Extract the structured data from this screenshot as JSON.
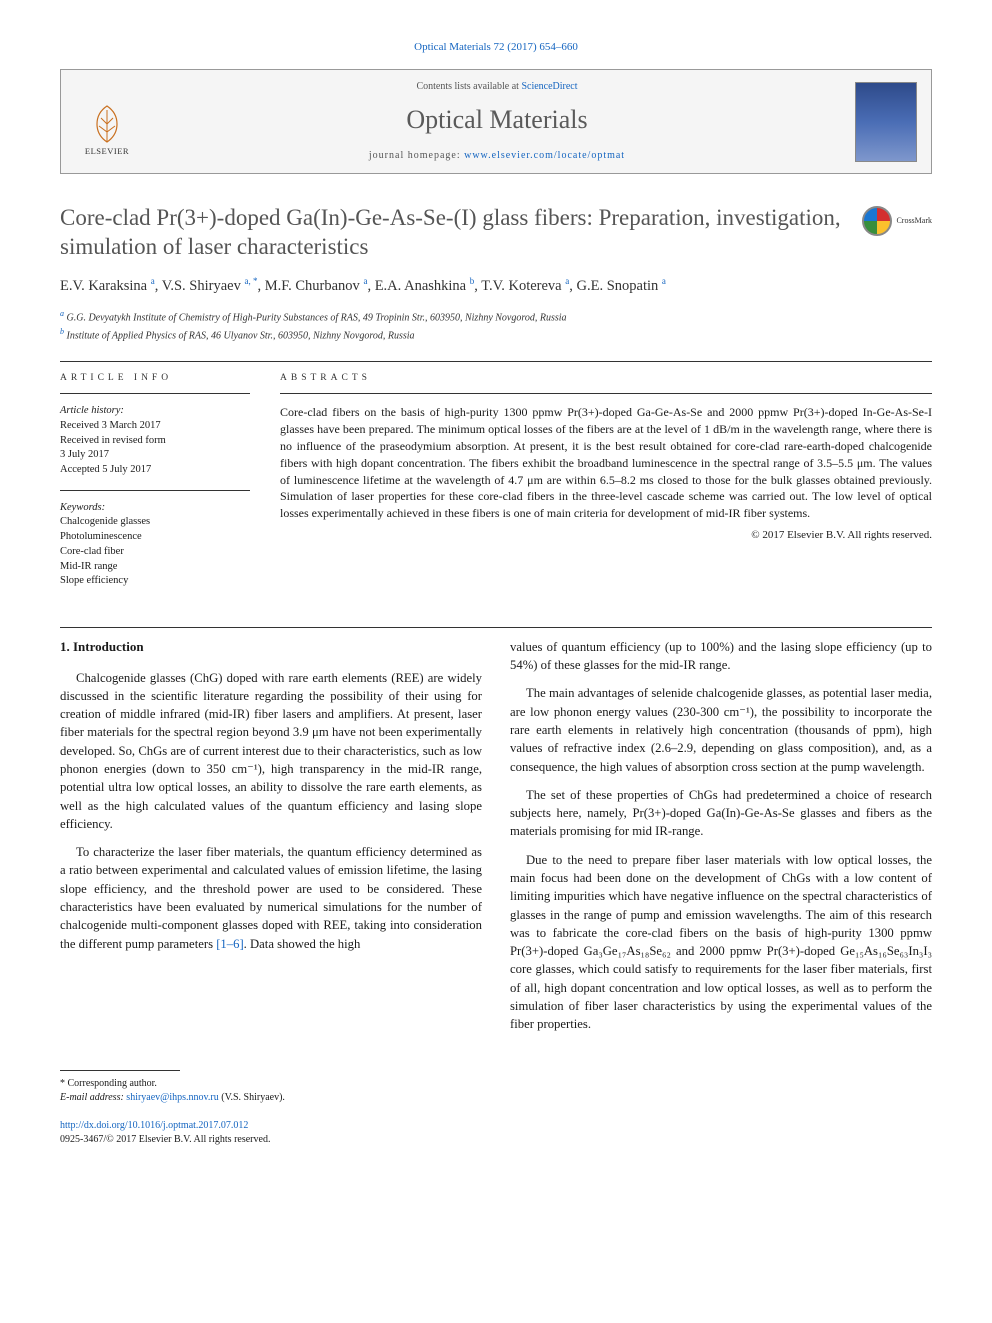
{
  "citation": "Optical Materials 72 (2017) 654–660",
  "header": {
    "contents_prefix": "Contents lists available at ",
    "contents_link": "ScienceDirect",
    "journal": "Optical Materials",
    "homepage_prefix": "journal homepage: ",
    "homepage_url": "www.elsevier.com/locate/optmat",
    "elsevier": "ELSEVIER"
  },
  "crossmark": "CrossMark",
  "title": "Core-clad Pr(3+)-doped Ga(In)-Ge-As-Se-(I) glass fibers: Preparation, investigation, simulation of laser characteristics",
  "authors_html": "E.V. Karaksina <sup>a</sup>, V.S. Shiryaev <sup>a, *</sup>, M.F. Churbanov <sup>a</sup>, E.A. Anashkina <sup>b</sup>, T.V. Kotereva <sup>a</sup>, G.E. Snopatin <sup>a</sup>",
  "affiliations": [
    {
      "sup": "a",
      "text": "G.G. Devyatykh Institute of Chemistry of High-Purity Substances of RAS, 49 Tropinin Str., 603950, Nizhny Novgorod, Russia"
    },
    {
      "sup": "b",
      "text": "Institute of Applied Physics of RAS, 46 Ulyanov Str., 603950, Nizhny Novgorod, Russia"
    }
  ],
  "info": {
    "label": "ARTICLE INFO",
    "history_label": "Article history:",
    "history": [
      "Received 3 March 2017",
      "Received in revised form",
      "3 July 2017",
      "Accepted 5 July 2017"
    ],
    "keywords_label": "Keywords:",
    "keywords": [
      "Chalcogenide glasses",
      "Photoluminescence",
      "Core-clad fiber",
      "Mid-IR range",
      "Slope efficiency"
    ]
  },
  "abstract": {
    "label": "ABSTRACTS",
    "text": "Core-clad fibers on the basis of high-purity 1300 ppmw Pr(3+)-doped Ga-Ge-As-Se and 2000 ppmw Pr(3+)-doped In-Ge-As-Se-I glasses have been prepared. The minimum optical losses of the fibers are at the level of 1 dB/m in the wavelength range, where there is no influence of the praseodymium absorption. At present, it is the best result obtained for core-clad rare-earth-doped chalcogenide fibers with high dopant concentration. The fibers exhibit the broadband luminescence in the spectral range of 3.5–5.5 μm. The values of luminescence lifetime at the wavelength of 4.7 μm are within 6.5–8.2 ms closed to those for the bulk glasses obtained previously. Simulation of laser properties for these core-clad fibers in the three-level cascade scheme was carried out. The low level of optical losses experimentally achieved in these fibers is one of main criteria for development of mid-IR fiber systems.",
    "copyright": "© 2017 Elsevier B.V. All rights reserved."
  },
  "section1": {
    "heading": "1. Introduction",
    "left_paras": [
      "Chalcogenide glasses (ChG) doped with rare earth elements (REE) are widely discussed in the scientific literature regarding the possibility of their using for creation of middle infrared (mid-IR) fiber lasers and amplifiers. At present, laser fiber materials for the spectral region beyond 3.9 μm have not been experimentally developed. So, ChGs are of current interest due to their characteristics, such as low phonon energies (down to 350 cm⁻¹), high transparency in the mid-IR range, potential ultra low optical losses, an ability to dissolve the rare earth elements, as well as the high calculated values of the quantum efficiency and lasing slope efficiency.",
      "To characterize the laser fiber materials, the quantum efficiency determined as a ratio between experimental and calculated values of emission lifetime, the lasing slope efficiency, and the threshold power are used to be considered. These characteristics have been evaluated by numerical simulations for the number of chalcogenide multi-component glasses doped with REE, taking into consideration the different pump parameters [1–6]. Data showed the high"
    ],
    "right_paras": [
      "values of quantum efficiency (up to 100%) and the lasing slope efficiency (up to 54%) of these glasses for the mid-IR range.",
      "The main advantages of selenide chalcogenide glasses, as potential laser media, are low phonon energy values (230-300 cm⁻¹), the possibility to incorporate the rare earth elements in relatively high concentration (thousands of ppm), high values of refractive index (2.6–2.9, depending on glass composition), and, as a consequence, the high values of absorption cross section at the pump wavelength.",
      "The set of these properties of ChGs had predetermined a choice of research subjects here, namely, Pr(3+)-doped Ga(In)-Ge-As-Se glasses and fibers as the materials promising for mid IR-range.",
      "Due to the need to prepare fiber laser materials with low optical losses, the main focus had been done on the development of ChGs with a low content of limiting impurities which have negative influence on the spectral characteristics of glasses in the range of pump and emission wavelengths. The aim of this research was to fabricate the core-clad fibers on the basis of high-purity 1300 ppmw Pr(3+)-doped Ga₃Ge₁₇As₁₈Se₆₂ and 2000 ppmw Pr(3+)-doped Ge₁₅As₁₆Se₆₃In₃I₃ core glasses, which could satisfy to requirements for the laser fiber materials, first of all, high dopant concentration and low optical losses, as well as to perform the simulation of fiber laser characteristics by using the experimental values of the fiber properties."
    ]
  },
  "footer": {
    "corr": "* Corresponding author.",
    "email_label": "E-mail address: ",
    "email": "shiryaev@ihps.nnov.ru",
    "email_who": " (V.S. Shiryaev)."
  },
  "doi": {
    "url": "http://dx.doi.org/10.1016/j.optmat.2017.07.012",
    "issn_line": "0925-3467/© 2017 Elsevier B.V. All rights reserved."
  },
  "colors": {
    "link": "#1565c0",
    "muted": "#555555",
    "rule": "#333333"
  }
}
